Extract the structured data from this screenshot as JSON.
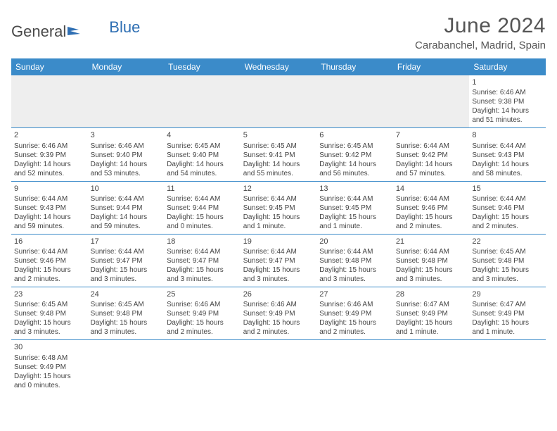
{
  "brand": {
    "part1": "General",
    "part2": "Blue",
    "flag_color": "#2f6fb3"
  },
  "title": "June 2024",
  "subtitle": "Carabanchel, Madrid, Spain",
  "colors": {
    "header_bg": "#3b8bc9",
    "header_fg": "#ffffff",
    "cell_border": "#3b8bc9",
    "text": "#444444",
    "empty_bg": "#eeeeee"
  },
  "weekdays": [
    "Sunday",
    "Monday",
    "Tuesday",
    "Wednesday",
    "Thursday",
    "Friday",
    "Saturday"
  ],
  "weeks": [
    [
      null,
      null,
      null,
      null,
      null,
      null,
      {
        "d": "1",
        "sr": "Sunrise: 6:46 AM",
        "ss": "Sunset: 9:38 PM",
        "dl1": "Daylight: 14 hours",
        "dl2": "and 51 minutes."
      }
    ],
    [
      {
        "d": "2",
        "sr": "Sunrise: 6:46 AM",
        "ss": "Sunset: 9:39 PM",
        "dl1": "Daylight: 14 hours",
        "dl2": "and 52 minutes."
      },
      {
        "d": "3",
        "sr": "Sunrise: 6:46 AM",
        "ss": "Sunset: 9:40 PM",
        "dl1": "Daylight: 14 hours",
        "dl2": "and 53 minutes."
      },
      {
        "d": "4",
        "sr": "Sunrise: 6:45 AM",
        "ss": "Sunset: 9:40 PM",
        "dl1": "Daylight: 14 hours",
        "dl2": "and 54 minutes."
      },
      {
        "d": "5",
        "sr": "Sunrise: 6:45 AM",
        "ss": "Sunset: 9:41 PM",
        "dl1": "Daylight: 14 hours",
        "dl2": "and 55 minutes."
      },
      {
        "d": "6",
        "sr": "Sunrise: 6:45 AM",
        "ss": "Sunset: 9:42 PM",
        "dl1": "Daylight: 14 hours",
        "dl2": "and 56 minutes."
      },
      {
        "d": "7",
        "sr": "Sunrise: 6:44 AM",
        "ss": "Sunset: 9:42 PM",
        "dl1": "Daylight: 14 hours",
        "dl2": "and 57 minutes."
      },
      {
        "d": "8",
        "sr": "Sunrise: 6:44 AM",
        "ss": "Sunset: 9:43 PM",
        "dl1": "Daylight: 14 hours",
        "dl2": "and 58 minutes."
      }
    ],
    [
      {
        "d": "9",
        "sr": "Sunrise: 6:44 AM",
        "ss": "Sunset: 9:43 PM",
        "dl1": "Daylight: 14 hours",
        "dl2": "and 59 minutes."
      },
      {
        "d": "10",
        "sr": "Sunrise: 6:44 AM",
        "ss": "Sunset: 9:44 PM",
        "dl1": "Daylight: 14 hours",
        "dl2": "and 59 minutes."
      },
      {
        "d": "11",
        "sr": "Sunrise: 6:44 AM",
        "ss": "Sunset: 9:44 PM",
        "dl1": "Daylight: 15 hours",
        "dl2": "and 0 minutes."
      },
      {
        "d": "12",
        "sr": "Sunrise: 6:44 AM",
        "ss": "Sunset: 9:45 PM",
        "dl1": "Daylight: 15 hours",
        "dl2": "and 1 minute."
      },
      {
        "d": "13",
        "sr": "Sunrise: 6:44 AM",
        "ss": "Sunset: 9:45 PM",
        "dl1": "Daylight: 15 hours",
        "dl2": "and 1 minute."
      },
      {
        "d": "14",
        "sr": "Sunrise: 6:44 AM",
        "ss": "Sunset: 9:46 PM",
        "dl1": "Daylight: 15 hours",
        "dl2": "and 2 minutes."
      },
      {
        "d": "15",
        "sr": "Sunrise: 6:44 AM",
        "ss": "Sunset: 9:46 PM",
        "dl1": "Daylight: 15 hours",
        "dl2": "and 2 minutes."
      }
    ],
    [
      {
        "d": "16",
        "sr": "Sunrise: 6:44 AM",
        "ss": "Sunset: 9:46 PM",
        "dl1": "Daylight: 15 hours",
        "dl2": "and 2 minutes."
      },
      {
        "d": "17",
        "sr": "Sunrise: 6:44 AM",
        "ss": "Sunset: 9:47 PM",
        "dl1": "Daylight: 15 hours",
        "dl2": "and 3 minutes."
      },
      {
        "d": "18",
        "sr": "Sunrise: 6:44 AM",
        "ss": "Sunset: 9:47 PM",
        "dl1": "Daylight: 15 hours",
        "dl2": "and 3 minutes."
      },
      {
        "d": "19",
        "sr": "Sunrise: 6:44 AM",
        "ss": "Sunset: 9:47 PM",
        "dl1": "Daylight: 15 hours",
        "dl2": "and 3 minutes."
      },
      {
        "d": "20",
        "sr": "Sunrise: 6:44 AM",
        "ss": "Sunset: 9:48 PM",
        "dl1": "Daylight: 15 hours",
        "dl2": "and 3 minutes."
      },
      {
        "d": "21",
        "sr": "Sunrise: 6:44 AM",
        "ss": "Sunset: 9:48 PM",
        "dl1": "Daylight: 15 hours",
        "dl2": "and 3 minutes."
      },
      {
        "d": "22",
        "sr": "Sunrise: 6:45 AM",
        "ss": "Sunset: 9:48 PM",
        "dl1": "Daylight: 15 hours",
        "dl2": "and 3 minutes."
      }
    ],
    [
      {
        "d": "23",
        "sr": "Sunrise: 6:45 AM",
        "ss": "Sunset: 9:48 PM",
        "dl1": "Daylight: 15 hours",
        "dl2": "and 3 minutes."
      },
      {
        "d": "24",
        "sr": "Sunrise: 6:45 AM",
        "ss": "Sunset: 9:48 PM",
        "dl1": "Daylight: 15 hours",
        "dl2": "and 3 minutes."
      },
      {
        "d": "25",
        "sr": "Sunrise: 6:46 AM",
        "ss": "Sunset: 9:49 PM",
        "dl1": "Daylight: 15 hours",
        "dl2": "and 2 minutes."
      },
      {
        "d": "26",
        "sr": "Sunrise: 6:46 AM",
        "ss": "Sunset: 9:49 PM",
        "dl1": "Daylight: 15 hours",
        "dl2": "and 2 minutes."
      },
      {
        "d": "27",
        "sr": "Sunrise: 6:46 AM",
        "ss": "Sunset: 9:49 PM",
        "dl1": "Daylight: 15 hours",
        "dl2": "and 2 minutes."
      },
      {
        "d": "28",
        "sr": "Sunrise: 6:47 AM",
        "ss": "Sunset: 9:49 PM",
        "dl1": "Daylight: 15 hours",
        "dl2": "and 1 minute."
      },
      {
        "d": "29",
        "sr": "Sunrise: 6:47 AM",
        "ss": "Sunset: 9:49 PM",
        "dl1": "Daylight: 15 hours",
        "dl2": "and 1 minute."
      }
    ],
    [
      {
        "d": "30",
        "sr": "Sunrise: 6:48 AM",
        "ss": "Sunset: 9:49 PM",
        "dl1": "Daylight: 15 hours",
        "dl2": "and 0 minutes."
      },
      null,
      null,
      null,
      null,
      null,
      null
    ]
  ]
}
